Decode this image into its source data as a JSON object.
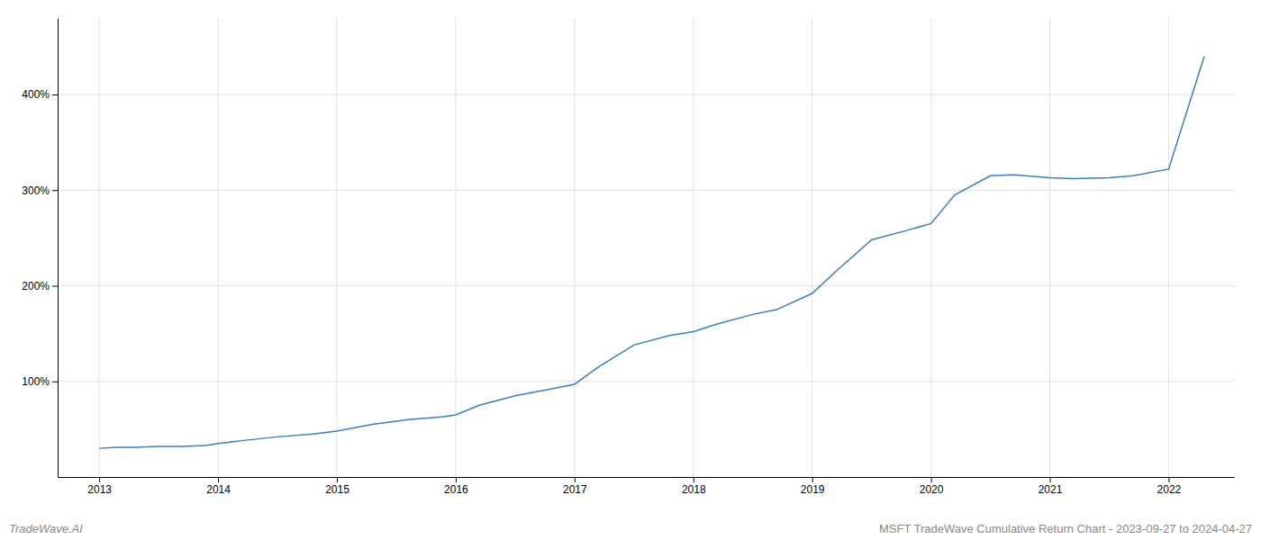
{
  "chart_data": {
    "type": "line",
    "title": "MSFT TradeWave Cumulative Return Chart - 2023-09-27 to 2024-04-27",
    "annotations": [
      "TradeWave.AI"
    ],
    "x": [
      2013.0,
      2013.15,
      2013.3,
      2013.5,
      2013.7,
      2013.9,
      2014.0,
      2014.2,
      2014.5,
      2014.8,
      2015.0,
      2015.3,
      2015.6,
      2015.9,
      2016.0,
      2016.2,
      2016.5,
      2016.8,
      2017.0,
      2017.2,
      2017.5,
      2017.8,
      2018.0,
      2018.2,
      2018.5,
      2018.7,
      2019.0,
      2019.2,
      2019.5,
      2019.8,
      2020.0,
      2020.2,
      2020.5,
      2020.7,
      2021.0,
      2021.2,
      2021.5,
      2021.7,
      2022.0,
      2022.3
    ],
    "values": [
      30,
      31,
      31,
      32,
      32,
      33,
      35,
      38,
      42,
      45,
      48,
      55,
      60,
      63,
      65,
      75,
      85,
      92,
      97,
      115,
      138,
      148,
      152,
      160,
      170,
      175,
      192,
      215,
      248,
      258,
      265,
      295,
      315,
      316,
      313,
      312,
      313,
      315,
      322,
      440
    ],
    "color": "#3a7ebf",
    "xlim": [
      2012.65,
      2022.55
    ],
    "xticks": [
      2013,
      2014,
      2015,
      2016,
      2017,
      2018,
      2019,
      2020,
      2021,
      2022
    ],
    "ylim": [
      0,
      480
    ],
    "yticks": [
      {
        "value": 100,
        "label": "100%"
      },
      {
        "value": 200,
        "label": "200%"
      },
      {
        "value": 300,
        "label": "300%"
      },
      {
        "value": 400,
        "label": "400%"
      }
    ],
    "grid": true
  }
}
